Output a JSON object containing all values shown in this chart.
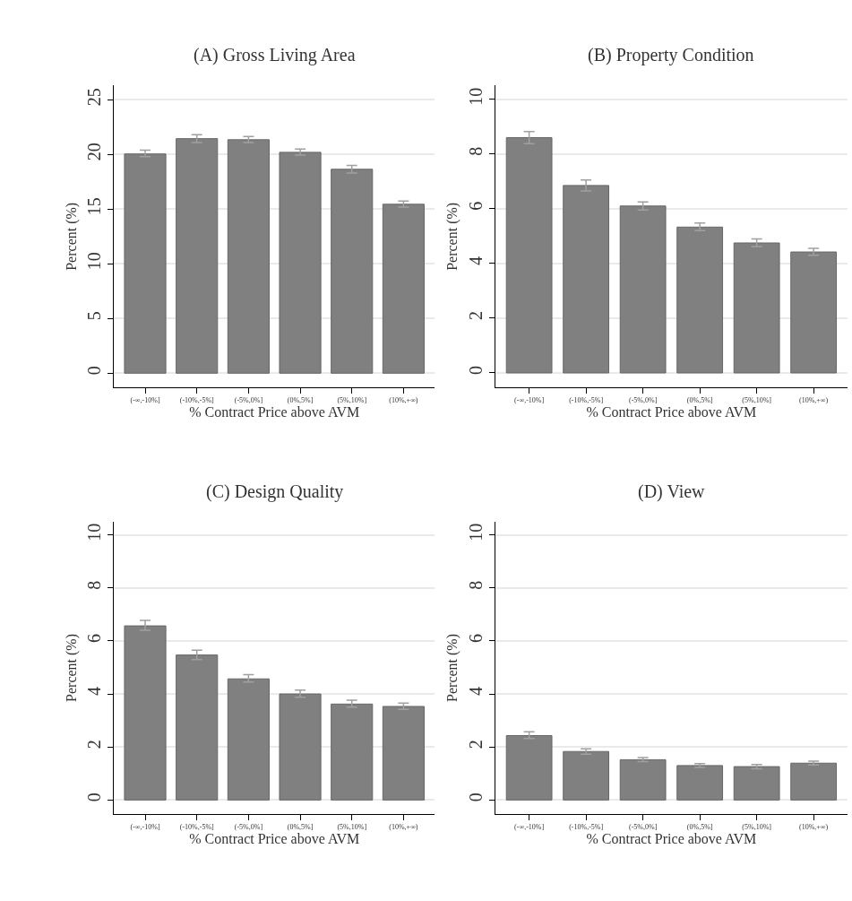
{
  "chart_data": [
    {
      "type": "bar",
      "title": "(A) Gross Living Area",
      "xlabel": "% Contract Price above AVM",
      "ylabel": "Percent (%)",
      "categories": [
        "(-∞,-10%]",
        "(-10%,-5%]",
        "(-5%,0%]",
        "(0%,5%]",
        "(5%,10%]",
        "(10%,+∞)"
      ],
      "values": [
        20.05,
        21.45,
        21.35,
        20.2,
        18.65,
        15.45
      ],
      "errors": [
        [
          19.8,
          20.4
        ],
        [
          21.1,
          21.8
        ],
        [
          21.1,
          21.65
        ],
        [
          19.95,
          20.5
        ],
        [
          18.3,
          19.0
        ],
        [
          15.2,
          15.75
        ]
      ],
      "color": "#808080",
      "ylim": [
        -1.3,
        26.3
      ],
      "yticks": [
        0,
        5,
        10,
        15,
        20,
        25
      ],
      "grid": "y"
    },
    {
      "type": "bar",
      "title": "(B) Property Condition",
      "xlabel": "% Contract Price above AVM",
      "ylabel": "Percent (%)",
      "categories": [
        "(-∞,-10%]",
        "(-10%,-5%]",
        "(-5%,0%]",
        "(0%,5%]",
        "(5%,10%]",
        "(10%,+∞)"
      ],
      "values": [
        8.6,
        6.85,
        6.1,
        5.33,
        4.75,
        4.42
      ],
      "errors": [
        [
          8.38,
          8.82
        ],
        [
          6.65,
          7.05
        ],
        [
          5.95,
          6.25
        ],
        [
          5.2,
          5.48
        ],
        [
          4.62,
          4.9
        ],
        [
          4.3,
          4.55
        ]
      ],
      "color": "#808080",
      "ylim": [
        -0.53,
        10.5
      ],
      "yticks": [
        0,
        2,
        4,
        6,
        8,
        10
      ],
      "grid": "y"
    },
    {
      "type": "bar",
      "title": "(C) Design Quality",
      "xlabel": "% Contract Price above AVM",
      "ylabel": "Percent (%)",
      "categories": [
        "(-∞,-10%]",
        "(-10%,-5%]",
        "(-5%,0%]",
        "(0%,5%]",
        "(5%,10%]",
        "(10%,+∞)"
      ],
      "values": [
        6.57,
        5.47,
        4.57,
        4.0,
        3.62,
        3.53
      ],
      "errors": [
        [
          6.4,
          6.78
        ],
        [
          5.3,
          5.65
        ],
        [
          4.45,
          4.73
        ],
        [
          3.88,
          4.15
        ],
        [
          3.5,
          3.77
        ],
        [
          3.42,
          3.66
        ]
      ],
      "color": "#808080",
      "ylim": [
        -0.53,
        10.5
      ],
      "yticks": [
        0,
        2,
        4,
        6,
        8,
        10
      ],
      "grid": "y"
    },
    {
      "type": "bar",
      "title": "(D) View",
      "xlabel": "% Contract Price above AVM",
      "ylabel": "Percent (%)",
      "categories": [
        "(-∞,-10%]",
        "(-10%,-5%]",
        "(-5%,0%]",
        "(0%,5%]",
        "(5%,10%]",
        "(10%,+∞)"
      ],
      "values": [
        2.43,
        1.83,
        1.52,
        1.3,
        1.26,
        1.39
      ],
      "errors": [
        [
          2.32,
          2.57
        ],
        [
          1.73,
          1.93
        ],
        [
          1.45,
          1.6
        ],
        [
          1.23,
          1.37
        ],
        [
          1.18,
          1.34
        ],
        [
          1.32,
          1.47
        ]
      ],
      "color": "#808080",
      "ylim": [
        -0.53,
        10.5
      ],
      "yticks": [
        0,
        2,
        4,
        6,
        8,
        10
      ],
      "grid": "y"
    }
  ]
}
